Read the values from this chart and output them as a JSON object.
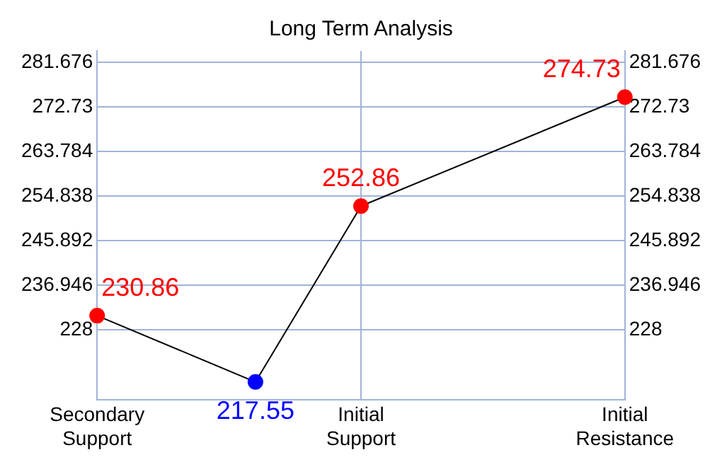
{
  "chart_data": {
    "type": "line",
    "title": "Long Term Analysis",
    "categories": [
      "Secondary Support",
      null,
      null,
      null,
      null,
      "Initial Support",
      null,
      null,
      null,
      null,
      "Initial Resistance"
    ],
    "series": [
      {
        "color": "#000000",
        "colors": [
          "#ff0000",
          null,
          null,
          "#0000ff",
          null,
          "#ff0000",
          null,
          null,
          null,
          null,
          "#ff0000"
        ],
        "values": [
          230.86,
          null,
          null,
          217.55,
          null,
          252.86,
          null,
          null,
          null,
          null,
          274.73
        ]
      }
    ],
    "ylim": [
      214,
      284
    ],
    "yticks": [
      228,
      236.946,
      245.892,
      254.838,
      263.784,
      272.73,
      281.676
    ],
    "y2lim": [
      214,
      284
    ],
    "y2ticks": [
      228,
      236.946,
      245.892,
      254.838,
      263.784,
      272.73,
      281.676
    ],
    "grid": true,
    "marker": "circle",
    "line_style": "solid",
    "data_labels": true,
    "legend": false
  }
}
